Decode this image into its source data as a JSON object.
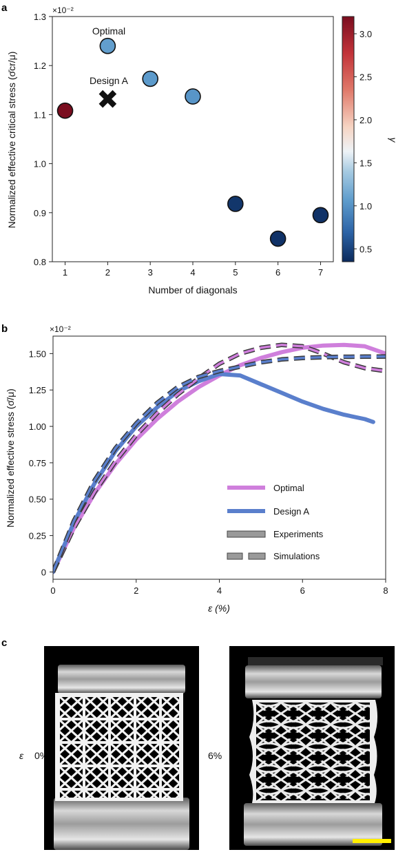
{
  "panel_a": {
    "label": "a",
    "multiplier": "×10⁻²",
    "annotations": {
      "optimal": "Optimal",
      "design_a": "Design A"
    },
    "colorbar": {
      "label": "γ",
      "ticks": [
        "0.5",
        "1.0",
        "1.5",
        "2.0",
        "2.5",
        "3.0"
      ]
    }
  },
  "panel_b": {
    "label": "b",
    "multiplier": "×10⁻²",
    "legend": {
      "optimal": "Optimal",
      "design_a": "Design A",
      "experiments": "Experiments",
      "simulations": "Simulations"
    }
  },
  "panel_c": {
    "label": "c",
    "row_label": "ε",
    "left_strain": "0%",
    "right_strain": "6%"
  },
  "colors": {
    "optimal_line": "#cf7fdc",
    "design_a_line": "#5a7fcc",
    "scale_bar": "#ffee00"
  },
  "chart_data": [
    {
      "type": "scatter",
      "xlabel": "Number of diagonals",
      "ylabel": "Normalized effective critical stress (σ̄cr/μ)",
      "xlim": [
        0.7,
        7.3
      ],
      "ylim": [
        0.8,
        1.3
      ],
      "xticks": [
        "1",
        "2",
        "3",
        "4",
        "5",
        "6",
        "7"
      ],
      "yticks": [
        "0.8",
        "0.9",
        "1.0",
        "1.1",
        "1.2",
        "1.3"
      ],
      "points": [
        {
          "x": 1,
          "y": 1.108,
          "gamma": 3.2
        },
        {
          "x": 2,
          "y": 1.24,
          "gamma": 1.08
        },
        {
          "x": 3,
          "y": 1.173,
          "gamma": 1.05
        },
        {
          "x": 4,
          "y": 1.137,
          "gamma": 1.02
        },
        {
          "x": 5,
          "y": 0.918,
          "gamma": 0.42
        },
        {
          "x": 6,
          "y": 0.847,
          "gamma": 0.4
        },
        {
          "x": 7,
          "y": 0.895,
          "gamma": 0.4
        }
      ],
      "design_a_point": {
        "x": 2,
        "y": 1.132
      },
      "colorbar_range": [
        0.35,
        3.2
      ]
    },
    {
      "type": "line",
      "xlabel": "ε (%)",
      "ylabel": "Normalized effective stress (σ̄/μ)",
      "xlim": [
        0,
        8
      ],
      "ylim": [
        -0.05,
        1.62
      ],
      "xticks": [
        "0",
        "2",
        "4",
        "6",
        "8"
      ],
      "yticks": [
        "0",
        "0.25",
        "0.50",
        "0.75",
        "1.00",
        "1.25",
        "1.50"
      ],
      "series": [
        {
          "name": "Optimal",
          "style": "Experiments",
          "x": [
            0,
            0.5,
            1,
            1.5,
            2,
            2.5,
            3,
            3.5,
            4,
            4.5,
            5,
            5.5,
            6,
            6.5,
            7,
            7.5,
            8
          ],
          "y": [
            0,
            0.3,
            0.54,
            0.74,
            0.91,
            1.05,
            1.17,
            1.27,
            1.35,
            1.42,
            1.47,
            1.51,
            1.54,
            1.555,
            1.56,
            1.55,
            1.5
          ]
        },
        {
          "name": "Optimal",
          "style": "Simulations",
          "x": [
            0,
            0.5,
            1,
            1.5,
            2,
            2.5,
            3,
            3.5,
            4,
            4.5,
            5,
            5.5,
            6,
            6.5,
            7,
            7.5,
            8
          ],
          "y": [
            0,
            0.3,
            0.55,
            0.76,
            0.94,
            1.09,
            1.22,
            1.33,
            1.43,
            1.5,
            1.54,
            1.56,
            1.55,
            1.5,
            1.44,
            1.4,
            1.38
          ]
        },
        {
          "name": "Design A",
          "style": "Experiments",
          "x": [
            0,
            0.5,
            1,
            1.5,
            2,
            2.5,
            3,
            3.5,
            4,
            4.5,
            5,
            5.5,
            6,
            6.5,
            7,
            7.5,
            7.7
          ],
          "y": [
            0,
            0.34,
            0.61,
            0.83,
            1.0,
            1.13,
            1.24,
            1.31,
            1.36,
            1.35,
            1.29,
            1.23,
            1.17,
            1.12,
            1.08,
            1.05,
            1.03
          ]
        },
        {
          "name": "Design A",
          "style": "Simulations",
          "x": [
            0,
            0.5,
            1,
            1.5,
            2,
            2.5,
            3,
            3.5,
            4,
            4.5,
            5,
            5.5,
            6,
            6.5,
            7,
            7.5,
            8
          ],
          "y": [
            0,
            0.35,
            0.63,
            0.85,
            1.02,
            1.16,
            1.27,
            1.34,
            1.38,
            1.41,
            1.44,
            1.46,
            1.47,
            1.475,
            1.478,
            1.479,
            1.48
          ]
        }
      ]
    }
  ]
}
